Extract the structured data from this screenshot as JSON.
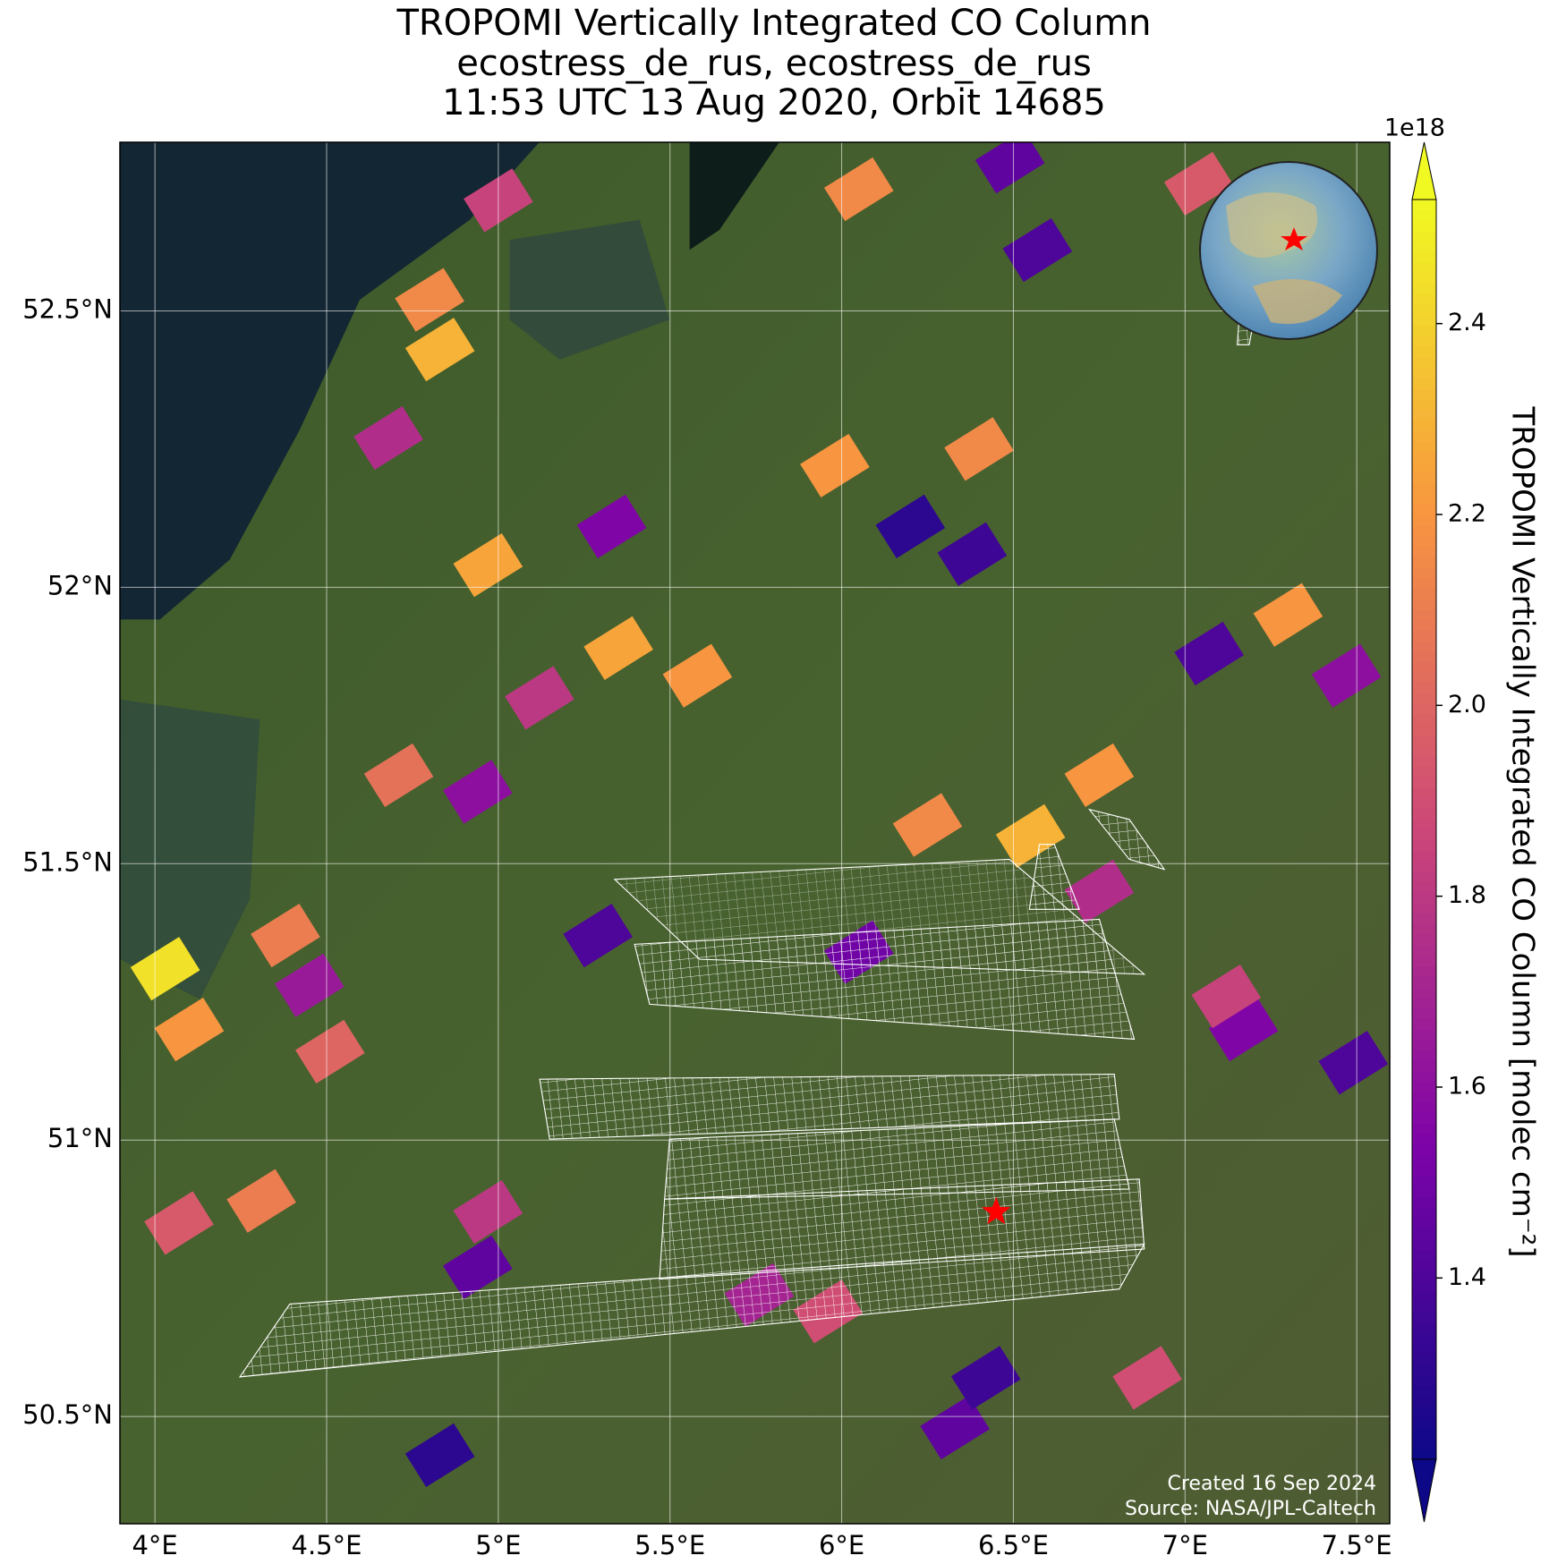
{
  "title": [
    "TROPOMI Vertically Integrated CO Column",
    "ecostress_de_rus, ecostress_de_rus",
    "11:53 UTC 13 Aug 2020, Orbit 14685"
  ],
  "map": {
    "xlim": [
      3.898,
      7.596
    ],
    "ylim": [
      50.306,
      52.805
    ],
    "xticks": [
      {
        "value": 4,
        "label": "4°E"
      },
      {
        "value": 4.5,
        "label": "4.5°E"
      },
      {
        "value": 5,
        "label": "5°E"
      },
      {
        "value": 5.5,
        "label": "5.5°E"
      },
      {
        "value": 6,
        "label": "6°E"
      },
      {
        "value": 6.5,
        "label": "6.5°E"
      },
      {
        "value": 7,
        "label": "7°E"
      },
      {
        "value": 7.5,
        "label": "7.5°E"
      }
    ],
    "yticks": [
      {
        "value": 50.5,
        "label": "50.5°N"
      },
      {
        "value": 51,
        "label": "51°N"
      },
      {
        "value": 51.5,
        "label": "51.5°N"
      },
      {
        "value": 52,
        "label": "52°N"
      },
      {
        "value": 52.5,
        "label": "52.5°N"
      }
    ],
    "grid": true,
    "colormap": "plasma",
    "cells": [
      {
        "lon": 4.03,
        "lat": 51.31,
        "value": 2.45
      },
      {
        "lon": 4.1,
        "lat": 51.2,
        "value": 2.2
      },
      {
        "lon": 4.38,
        "lat": 51.37,
        "value": 2.1
      },
      {
        "lon": 4.83,
        "lat": 52.43,
        "value": 2.3
      },
      {
        "lon": 4.8,
        "lat": 52.52,
        "value": 2.15
      },
      {
        "lon": 4.97,
        "lat": 52.04,
        "value": 2.25
      },
      {
        "lon": 4.68,
        "lat": 52.27,
        "value": 1.75
      },
      {
        "lon": 5.0,
        "lat": 52.7,
        "value": 1.85
      },
      {
        "lon": 5.33,
        "lat": 52.11,
        "value": 1.55
      },
      {
        "lon": 5.98,
        "lat": 52.22,
        "value": 2.2
      },
      {
        "lon": 6.2,
        "lat": 52.11,
        "value": 1.3
      },
      {
        "lon": 6.38,
        "lat": 52.06,
        "value": 1.35
      },
      {
        "lon": 6.4,
        "lat": 52.25,
        "value": 2.15
      },
      {
        "lon": 6.05,
        "lat": 52.72,
        "value": 2.15
      },
      {
        "lon": 6.57,
        "lat": 52.61,
        "value": 1.4
      },
      {
        "lon": 6.49,
        "lat": 52.77,
        "value": 1.45
      },
      {
        "lon": 7.04,
        "lat": 52.73,
        "value": 1.95
      },
      {
        "lon": 7.3,
        "lat": 51.95,
        "value": 2.2
      },
      {
        "lon": 7.07,
        "lat": 51.88,
        "value": 1.4
      },
      {
        "lon": 7.47,
        "lat": 51.84,
        "value": 1.6
      },
      {
        "lon": 6.75,
        "lat": 51.66,
        "value": 2.2
      },
      {
        "lon": 6.55,
        "lat": 51.55,
        "value": 2.3
      },
      {
        "lon": 6.25,
        "lat": 51.57,
        "value": 2.15
      },
      {
        "lon": 5.58,
        "lat": 51.84,
        "value": 2.2
      },
      {
        "lon": 5.35,
        "lat": 51.89,
        "value": 2.25
      },
      {
        "lon": 5.12,
        "lat": 51.8,
        "value": 1.8
      },
      {
        "lon": 4.94,
        "lat": 51.63,
        "value": 1.6
      },
      {
        "lon": 4.71,
        "lat": 51.66,
        "value": 2.05
      },
      {
        "lon": 4.45,
        "lat": 51.28,
        "value": 1.65
      },
      {
        "lon": 5.29,
        "lat": 51.37,
        "value": 1.4
      },
      {
        "lon": 6.05,
        "lat": 51.34,
        "value": 1.5
      },
      {
        "lon": 7.49,
        "lat": 51.14,
        "value": 1.4
      },
      {
        "lon": 7.17,
        "lat": 51.2,
        "value": 1.55
      },
      {
        "lon": 4.97,
        "lat": 50.87,
        "value": 1.8
      },
      {
        "lon": 4.94,
        "lat": 50.77,
        "value": 1.45
      },
      {
        "lon": 4.31,
        "lat": 50.89,
        "value": 2.1
      },
      {
        "lon": 4.83,
        "lat": 50.43,
        "value": 1.3
      },
      {
        "lon": 6.33,
        "lat": 50.48,
        "value": 1.45
      },
      {
        "lon": 6.42,
        "lat": 50.57,
        "value": 1.35
      },
      {
        "lon": 5.96,
        "lat": 50.69,
        "value": 1.9
      },
      {
        "lon": 5.76,
        "lat": 50.72,
        "value": 1.7
      },
      {
        "lon": 6.89,
        "lat": 50.57,
        "value": 1.9
      },
      {
        "lon": 7.12,
        "lat": 51.26,
        "value": 1.85
      },
      {
        "lon": 6.75,
        "lat": 51.45,
        "value": 1.75
      },
      {
        "lon": 4.51,
        "lat": 51.16,
        "value": 2.0
      },
      {
        "lon": 4.07,
        "lat": 50.85,
        "value": 1.95
      }
    ],
    "site": {
      "lon": 6.45,
      "lat": 50.87,
      "color": "#ff0000"
    }
  },
  "colorbar": {
    "vlim": [
      1.21,
      2.53
    ],
    "offset": "1e18",
    "ticks": [
      1.4,
      1.6,
      1.8,
      {
        "value": 2,
        "label": "2.0"
      },
      2.2,
      2.4
    ],
    "label": "TROPOMI Vertically Integrated CO Column [molec cm⁻²]"
  },
  "credits": [
    "Created 16 Sep 2024",
    "Source: NASA/JPL-Caltech"
  ]
}
